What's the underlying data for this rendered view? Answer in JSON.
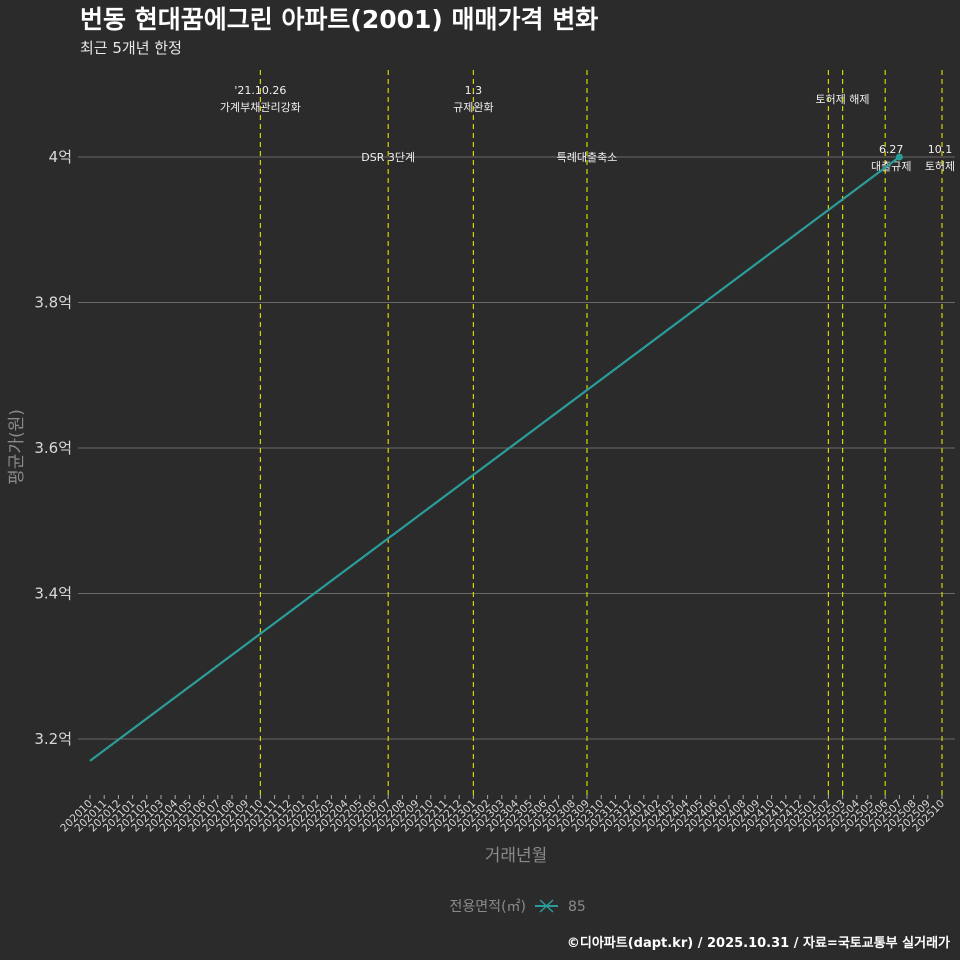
{
  "chart_data": {
    "type": "line",
    "title": "번동 현대꿈에그린 아파트(2001) 매매가격 변화",
    "subtitle": "최근 5개년 한정",
    "xlabel": "거래년월",
    "ylabel": "평균가(원)",
    "categories": [
      "202010",
      "202011",
      "202012",
      "202101",
      "202102",
      "202103",
      "202104",
      "202105",
      "202106",
      "202107",
      "202108",
      "202109",
      "202110",
      "202111",
      "202112",
      "202201",
      "202202",
      "202203",
      "202204",
      "202205",
      "202206",
      "202207",
      "202208",
      "202209",
      "202210",
      "202211",
      "202212",
      "202301",
      "202302",
      "202303",
      "202304",
      "202305",
      "202306",
      "202307",
      "202308",
      "202309",
      "202310",
      "202311",
      "202312",
      "202401",
      "202402",
      "202403",
      "202404",
      "202405",
      "202406",
      "202407",
      "202408",
      "202409",
      "202410",
      "202411",
      "202412",
      "202501",
      "202502",
      "202503",
      "202504",
      "202505",
      "202506",
      "202507",
      "202508",
      "202509",
      "202510"
    ],
    "yticks": [
      {
        "value": 3.2,
        "label": "3.2억"
      },
      {
        "value": 3.4,
        "label": "3.4억"
      },
      {
        "value": 3.6,
        "label": "3.6억"
      },
      {
        "value": 3.8,
        "label": "3.8억"
      },
      {
        "value": 4.0,
        "label": "4억"
      }
    ],
    "ylim": [
      3.135,
      4.12
    ],
    "y_unit": "억",
    "grid": true,
    "series": [
      {
        "name": "85",
        "color": "#2a9d9a",
        "points": [
          {
            "x": "202010",
            "y": 3.17
          },
          {
            "x": "202507",
            "y": 4.0
          }
        ]
      }
    ],
    "events": [
      {
        "x": "202110",
        "date": "'21.10.26",
        "text": "가계부채관리강화"
      },
      {
        "x": "202207",
        "date": "",
        "text": "DSR 3단계"
      },
      {
        "x": "202301",
        "date": "1.3",
        "text": "규제완화"
      },
      {
        "x": "202309",
        "date": "",
        "text": "특례대출축소"
      },
      {
        "x": "202502",
        "date": "",
        "text": "토허제 해제"
      },
      {
        "x": "202503",
        "date": "",
        "text": ""
      },
      {
        "x": "202506",
        "date": "6.27",
        "text": "대출규제"
      },
      {
        "x": "202510",
        "date": "10.1",
        "text": "토허제"
      }
    ],
    "event_line_color": "#d4d400",
    "legend": {
      "title": "전용면적(㎡)",
      "position": "bottom"
    }
  },
  "caption": "©디아파트(dapt.kr) / 2025.10.31 / 자료=국토교통부 실거래가"
}
